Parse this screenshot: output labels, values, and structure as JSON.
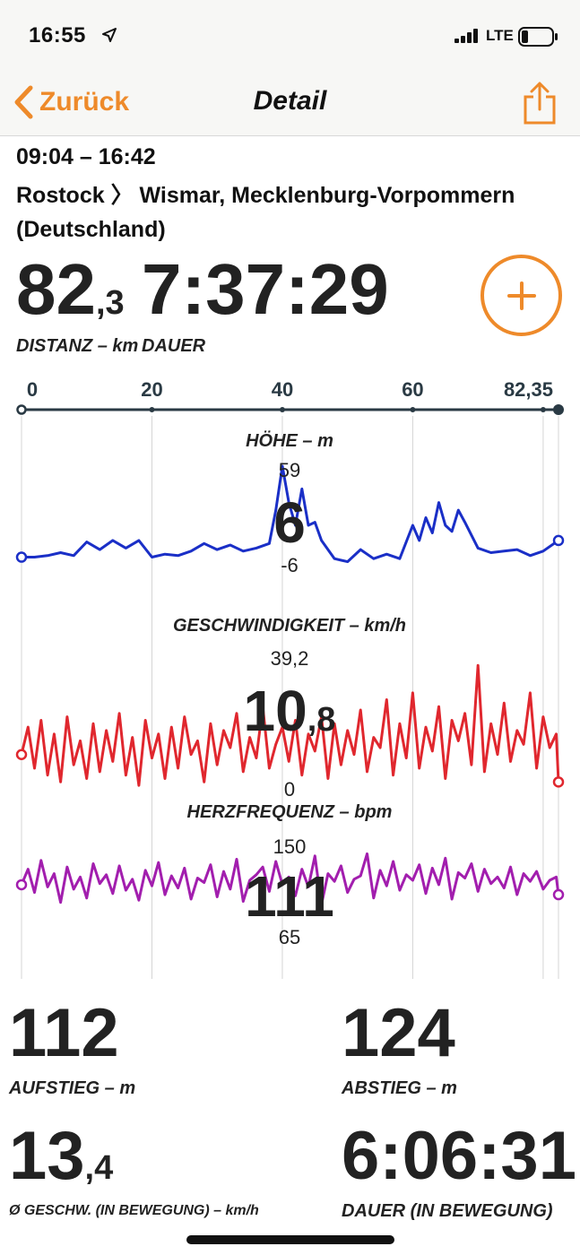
{
  "status_bar": {
    "time": "16:55",
    "network": "LTE"
  },
  "nav": {
    "back_label": "Zurück",
    "title": "Detail"
  },
  "trip": {
    "time_range": "09:04 – 16:42",
    "route": "Rostock 〉 Wismar, Mecklenburg-Vorpommern (Deutschland)"
  },
  "summary": {
    "distance_int": "82",
    "distance_dec": ",3",
    "distance_label": "DISTANZ – km",
    "duration": "7:37:29",
    "duration_label": "DAUER"
  },
  "colors": {
    "accent": "#ee8a2a",
    "altitude": "#1a2fc7",
    "speed": "#e0272e",
    "heart_rate": "#a21eae",
    "axis": "#2a3a44"
  },
  "chart_data": [
    {
      "type": "line",
      "title": "HÖHE – m",
      "x_ticks": [
        "0",
        "20",
        "40",
        "60",
        "82,35"
      ],
      "x_range": [
        0,
        82.35
      ],
      "y_range": [
        -6,
        59
      ],
      "y_max_label": "59",
      "y_min_label": "-6",
      "current_value": "6",
      "x": [
        0,
        2,
        4,
        6,
        8,
        10,
        12,
        14,
        16,
        18,
        20,
        22,
        24,
        26,
        28,
        30,
        32,
        34,
        36,
        38,
        39,
        40,
        41,
        42,
        43,
        44,
        45,
        46,
        48,
        50,
        52,
        54,
        56,
        58,
        60,
        61,
        62,
        63,
        64,
        65,
        66,
        67,
        68,
        70,
        72,
        74,
        76,
        78,
        80,
        82.35
      ],
      "values": [
        -1,
        -1,
        0,
        2,
        0,
        9,
        4,
        10,
        5,
        10,
        -1,
        1,
        0,
        3,
        8,
        4,
        7,
        3,
        5,
        8,
        30,
        59,
        35,
        20,
        44,
        20,
        22,
        10,
        -2,
        -4,
        4,
        -2,
        1,
        -2,
        20,
        10,
        25,
        15,
        35,
        20,
        16,
        30,
        22,
        5,
        2,
        3,
        4,
        0,
        3,
        10
      ]
    },
    {
      "type": "line",
      "title": "GESCHWINDIGKEIT – km/h",
      "x_range": [
        0,
        82.35
      ],
      "y_range": [
        0,
        39.2
      ],
      "y_max_label": "39,2",
      "y_min_label": "0",
      "current_value_int": "10",
      "current_value_dec": ",8",
      "x": [
        0,
        1,
        2,
        3,
        4,
        5,
        6,
        7,
        8,
        9,
        10,
        11,
        12,
        13,
        14,
        15,
        16,
        17,
        18,
        19,
        20,
        21,
        22,
        23,
        24,
        25,
        26,
        27,
        28,
        29,
        30,
        31,
        32,
        33,
        34,
        35,
        36,
        37,
        38,
        39,
        40,
        41,
        42,
        43,
        44,
        45,
        46,
        47,
        48,
        49,
        50,
        51,
        52,
        53,
        54,
        55,
        56,
        57,
        58,
        59,
        60,
        61,
        62,
        63,
        64,
        65,
        66,
        67,
        68,
        69,
        70,
        71,
        72,
        73,
        74,
        75,
        76,
        77,
        78,
        79,
        80,
        81,
        82,
        82.35
      ],
      "values": [
        10,
        18,
        6,
        20,
        4,
        16,
        2,
        21,
        7,
        14,
        3,
        19,
        5,
        17,
        8,
        22,
        4,
        15,
        1,
        20,
        9,
        16,
        3,
        18,
        6,
        21,
        10,
        14,
        2,
        19,
        7,
        17,
        12,
        22,
        5,
        15,
        9,
        24,
        6,
        13,
        18,
        8,
        20,
        4,
        16,
        11,
        21,
        3,
        19,
        7,
        17,
        10,
        23,
        5,
        15,
        12,
        26,
        4,
        19,
        9,
        28,
        6,
        18,
        11,
        24,
        3,
        20,
        14,
        22,
        7,
        36,
        5,
        19,
        10,
        25,
        8,
        17,
        13,
        28,
        6,
        21,
        12,
        16,
        2
      ]
    },
    {
      "type": "line",
      "title": "HERZFREQUENZ – bpm",
      "x_range": [
        0,
        82.35
      ],
      "y_range": [
        65,
        150
      ],
      "y_max_label": "150",
      "y_min_label": "65",
      "current_value": "111",
      "x": [
        0,
        1,
        2,
        3,
        4,
        5,
        6,
        7,
        8,
        9,
        10,
        11,
        12,
        13,
        14,
        15,
        16,
        17,
        18,
        19,
        20,
        21,
        22,
        23,
        24,
        25,
        26,
        27,
        28,
        29,
        30,
        31,
        32,
        33,
        34,
        35,
        36,
        37,
        38,
        39,
        40,
        41,
        42,
        43,
        44,
        45,
        46,
        47,
        48,
        49,
        50,
        51,
        52,
        53,
        54,
        55,
        56,
        57,
        58,
        59,
        60,
        61,
        62,
        63,
        64,
        65,
        66,
        67,
        68,
        69,
        70,
        71,
        72,
        73,
        74,
        75,
        76,
        77,
        78,
        79,
        80,
        81,
        82,
        82.35
      ],
      "values": [
        112,
        126,
        105,
        134,
        110,
        122,
        96,
        128,
        108,
        119,
        100,
        131,
        113,
        121,
        104,
        129,
        107,
        117,
        98,
        125,
        111,
        132,
        103,
        120,
        109,
        127,
        99,
        118,
        114,
        130,
        101,
        124,
        108,
        135,
        97,
        116,
        121,
        128,
        106,
        133,
        112,
        119,
        102,
        126,
        110,
        138,
        94,
        122,
        115,
        129,
        105,
        117,
        120,
        140,
        100,
        125,
        111,
        133,
        107,
        121,
        116,
        130,
        104,
        127,
        112,
        136,
        99,
        123,
        118,
        131,
        106,
        126,
        113,
        119,
        109,
        128,
        103,
        122,
        115,
        124,
        108,
        116,
        119,
        103
      ]
    }
  ],
  "stats": {
    "ascent": "112",
    "ascent_label": "AUFSTIEG – m",
    "descent": "124",
    "descent_label": "ABSTIEG – m",
    "avg_speed_int": "13",
    "avg_speed_dec": ",4",
    "avg_speed_label": "Ø GESCHW. (IN BEWEGUNG) – km/h",
    "moving_time": "6:06:31",
    "moving_time_label": "DAUER (IN BEWEGUNG)"
  }
}
